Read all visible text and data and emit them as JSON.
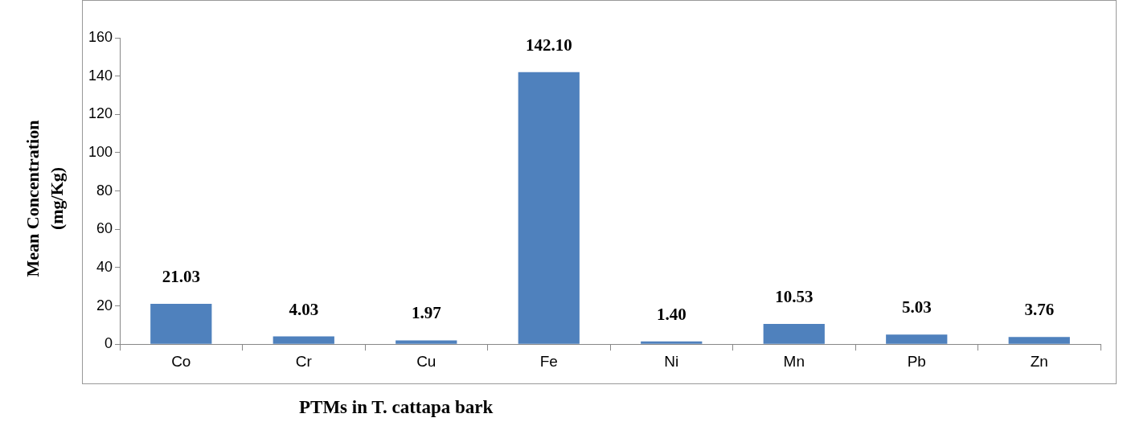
{
  "chart_data": {
    "type": "bar",
    "xlabel": "PTMs in T. cattapa bark",
    "ylabel": "Mean Concentration\n(mg/Kg)",
    "categories": [
      "Co",
      "Cr",
      "Cu",
      "Fe",
      "Ni",
      "Mn",
      "Pb",
      "Zn"
    ],
    "values": [
      21.03,
      4.03,
      1.97,
      142.1,
      1.4,
      10.53,
      5.03,
      3.76
    ],
    "value_labels": [
      "21.03",
      "4.03",
      "1.97",
      "142.10",
      "1.40",
      "10.53",
      "5.03",
      "3.76"
    ],
    "color": "#4f81bd",
    "ylim": [
      0,
      160
    ],
    "yticks": [
      0,
      20,
      40,
      60,
      80,
      100,
      120,
      140,
      160
    ],
    "grid": false,
    "legend": false
  }
}
